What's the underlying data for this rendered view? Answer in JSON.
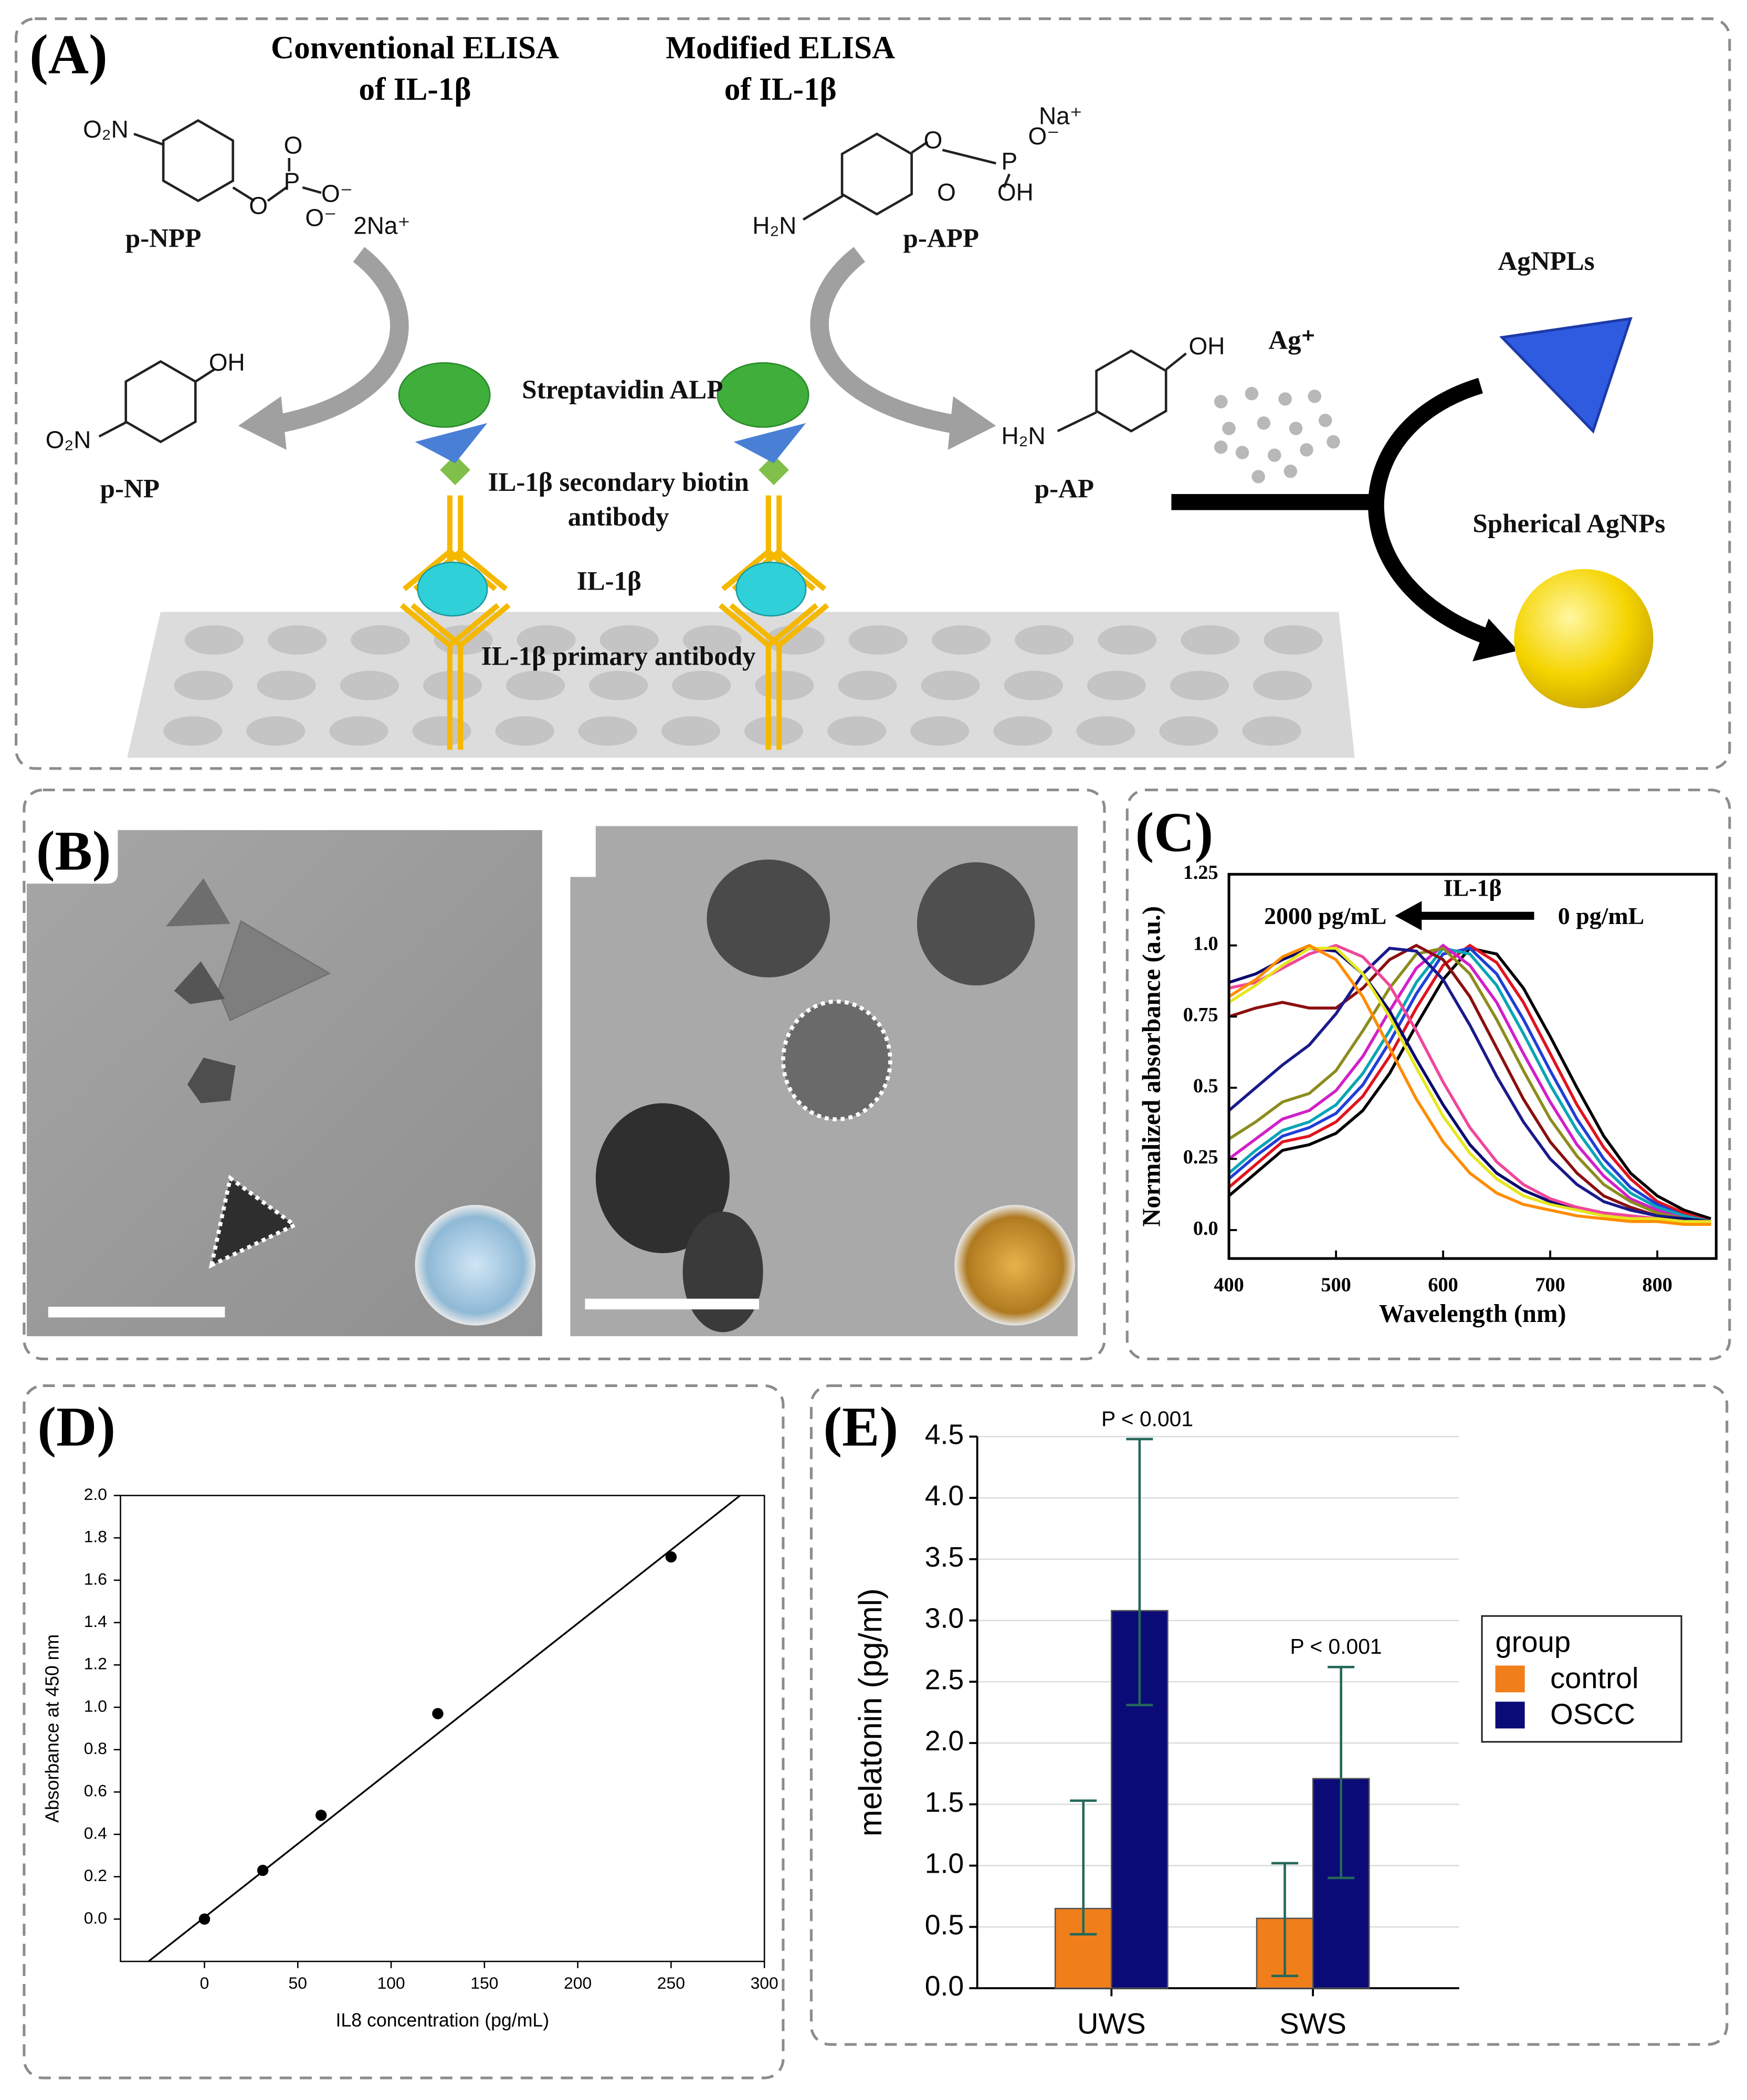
{
  "panel_labels": [
    "(A)",
    "(B)",
    "(C)",
    "(D)",
    "(E)"
  ],
  "panel_a": {
    "conventional_title": [
      "Conventional ELISA",
      "of IL-1β"
    ],
    "modified_title": [
      "Modified ELISA",
      "of IL-1β"
    ],
    "pnpp": {
      "atoms": [
        "O₂N",
        "O",
        "P",
        "O",
        "O⁻",
        "O⁻"
      ],
      "counterion": "2Na⁺",
      "name": "p-NPP"
    },
    "pnp": {
      "atoms": [
        "OH",
        "O₂N"
      ],
      "name": "p-NP"
    },
    "papp": {
      "atoms": [
        "O",
        "P",
        "O⁻",
        "Na⁺",
        "O",
        "OH",
        "H₂N"
      ],
      "name": "p-APP"
    },
    "pap": {
      "atoms": [
        "OH",
        "H₂N"
      ],
      "name": "p-AP"
    },
    "assay_labels": [
      "Streptavidin ALP",
      "IL-1β secondary biotin",
      "antibody",
      "IL-1β",
      "IL-1β primary antibody"
    ],
    "silver_ion": "Ag⁺",
    "plates_label": "AgNPLs",
    "spheres_label": "Spherical AgNPs"
  },
  "chart_data": [
    {
      "type": "line",
      "xlabel": "Wavelength (nm)",
      "ylabel": "Normalized absorbance (a.u.)",
      "annotations": [
        "IL-1β",
        "2000 pg/mL",
        "0 pg/mL"
      ],
      "x": [
        400,
        425,
        450,
        475,
        500,
        525,
        550,
        575,
        600,
        625,
        650,
        675,
        700,
        725,
        750,
        775,
        800,
        825,
        850
      ],
      "series": [
        {
          "color": "#000000",
          "values": [
            0.12,
            0.2,
            0.28,
            0.3,
            0.34,
            0.42,
            0.55,
            0.72,
            0.88,
            0.99,
            0.97,
            0.85,
            0.68,
            0.5,
            0.33,
            0.2,
            0.12,
            0.07,
            0.04
          ]
        },
        {
          "color": "#e0141e",
          "values": [
            0.15,
            0.23,
            0.31,
            0.33,
            0.38,
            0.47,
            0.61,
            0.78,
            0.93,
            1.0,
            0.94,
            0.8,
            0.62,
            0.44,
            0.29,
            0.18,
            0.1,
            0.06,
            0.03
          ]
        },
        {
          "color": "#1f3fd6",
          "values": [
            0.18,
            0.26,
            0.33,
            0.36,
            0.41,
            0.51,
            0.66,
            0.83,
            0.97,
            0.99,
            0.9,
            0.74,
            0.56,
            0.39,
            0.25,
            0.15,
            0.09,
            0.05,
            0.03
          ]
        },
        {
          "color": "#0aa5b5",
          "values": [
            0.2,
            0.28,
            0.35,
            0.38,
            0.44,
            0.55,
            0.7,
            0.87,
            0.99,
            0.97,
            0.86,
            0.69,
            0.51,
            0.35,
            0.22,
            0.13,
            0.08,
            0.05,
            0.03
          ]
        },
        {
          "color": "#d21fc8",
          "values": [
            0.25,
            0.32,
            0.39,
            0.42,
            0.49,
            0.61,
            0.77,
            0.92,
            1.0,
            0.93,
            0.8,
            0.62,
            0.45,
            0.3,
            0.19,
            0.11,
            0.07,
            0.04,
            0.02
          ]
        },
        {
          "color": "#8c8c1e",
          "values": [
            0.32,
            0.38,
            0.45,
            0.48,
            0.56,
            0.7,
            0.85,
            0.97,
            0.99,
            0.9,
            0.74,
            0.56,
            0.39,
            0.26,
            0.16,
            0.1,
            0.06,
            0.04,
            0.02
          ]
        },
        {
          "color": "#8b0f0f",
          "values": [
            0.75,
            0.78,
            0.8,
            0.78,
            0.78,
            0.85,
            0.95,
            1.0,
            0.95,
            0.82,
            0.64,
            0.46,
            0.31,
            0.2,
            0.12,
            0.08,
            0.05,
            0.03,
            0.02
          ]
        },
        {
          "color": "#1a1a8c",
          "values": [
            0.42,
            0.5,
            0.58,
            0.65,
            0.76,
            0.9,
            0.99,
            0.98,
            0.88,
            0.72,
            0.54,
            0.38,
            0.25,
            0.16,
            0.1,
            0.07,
            0.05,
            0.04,
            0.03
          ]
        },
        {
          "color": "#0a0a6e",
          "values": [
            0.87,
            0.9,
            0.95,
            0.99,
            0.98,
            0.9,
            0.77,
            0.6,
            0.44,
            0.3,
            0.2,
            0.14,
            0.1,
            0.08,
            0.06,
            0.05,
            0.04,
            0.04,
            0.03
          ]
        },
        {
          "color": "#f0469b",
          "values": [
            0.85,
            0.87,
            0.92,
            0.97,
            1.0,
            0.96,
            0.86,
            0.7,
            0.52,
            0.36,
            0.24,
            0.16,
            0.11,
            0.08,
            0.06,
            0.05,
            0.04,
            0.03,
            0.03
          ]
        },
        {
          "color": "#e6e61e",
          "values": [
            0.8,
            0.86,
            0.93,
            0.99,
            0.99,
            0.9,
            0.75,
            0.57,
            0.4,
            0.27,
            0.18,
            0.12,
            0.09,
            0.07,
            0.05,
            0.04,
            0.04,
            0.03,
            0.03
          ]
        },
        {
          "color": "#ff8c00",
          "values": [
            0.82,
            0.88,
            0.96,
            1.0,
            0.95,
            0.82,
            0.64,
            0.46,
            0.31,
            0.2,
            0.13,
            0.09,
            0.07,
            0.05,
            0.04,
            0.03,
            0.03,
            0.02,
            0.02
          ]
        }
      ],
      "xlim": [
        400,
        855
      ],
      "ylim": [
        -0.1,
        1.25
      ],
      "xticks": [
        400,
        500,
        600,
        700,
        800
      ],
      "yticks": [
        {
          "value": 0,
          "label": "0.0"
        },
        0.25,
        0.5,
        0.75,
        {
          "value": 1,
          "label": "1.0"
        },
        1.25
      ]
    },
    {
      "type": "scatter",
      "xlabel": "IL8 concentration (pg/mL)",
      "ylabel": "Absorbance at 450 nm",
      "x": [
        0,
        31.25,
        62.5,
        125,
        250
      ],
      "values": [
        0,
        0.23,
        0.49,
        0.97,
        1.71
      ],
      "color": "#000000",
      "fit_line": {
        "x": [
          -30,
          287
        ],
        "values": [
          -0.2,
          2.0
        ]
      },
      "xlim": [
        -45,
        300
      ],
      "ylim": [
        -0.2,
        2.0
      ],
      "xticks": [
        0,
        50,
        100,
        150,
        200,
        250,
        300
      ],
      "yticks": [
        {
          "value": 0,
          "label": "0.0"
        },
        0.2,
        0.4,
        0.6,
        0.8,
        {
          "value": 1,
          "label": "1.0"
        },
        1.2,
        1.4,
        1.6,
        1.8,
        {
          "value": 2,
          "label": "2.0"
        }
      ]
    },
    {
      "type": "bar",
      "ylabel": "melatonin (pg/ml)",
      "categories": [
        "UWS",
        "SWS"
      ],
      "legend_title": "group",
      "legend": "right",
      "grid": true,
      "error_color": "#24685a",
      "series": [
        {
          "name": "control",
          "color": "#f07f1b",
          "values": [
            0.65,
            0.57
          ],
          "error_low": [
            0.44,
            0.1
          ],
          "error_high": [
            1.53,
            1.02
          ]
        },
        {
          "name": "OSCC",
          "color": "#0b0b78",
          "values": [
            3.08,
            1.71
          ],
          "error_low": [
            2.31,
            0.9
          ],
          "error_high": [
            4.48,
            2.62
          ]
        }
      ],
      "annotations": [
        "P < 0.001",
        "P < 0.001"
      ],
      "ylim": [
        0,
        4.5
      ],
      "yticks": [
        {
          "value": 0,
          "label": "0.0"
        },
        0.5,
        {
          "value": 1,
          "label": "1.0"
        },
        1.5,
        {
          "value": 2,
          "label": "2.0"
        },
        2.5,
        {
          "value": 3,
          "label": "3.0"
        },
        3.5,
        {
          "value": 4,
          "label": "4.0"
        },
        4.5
      ]
    }
  ]
}
